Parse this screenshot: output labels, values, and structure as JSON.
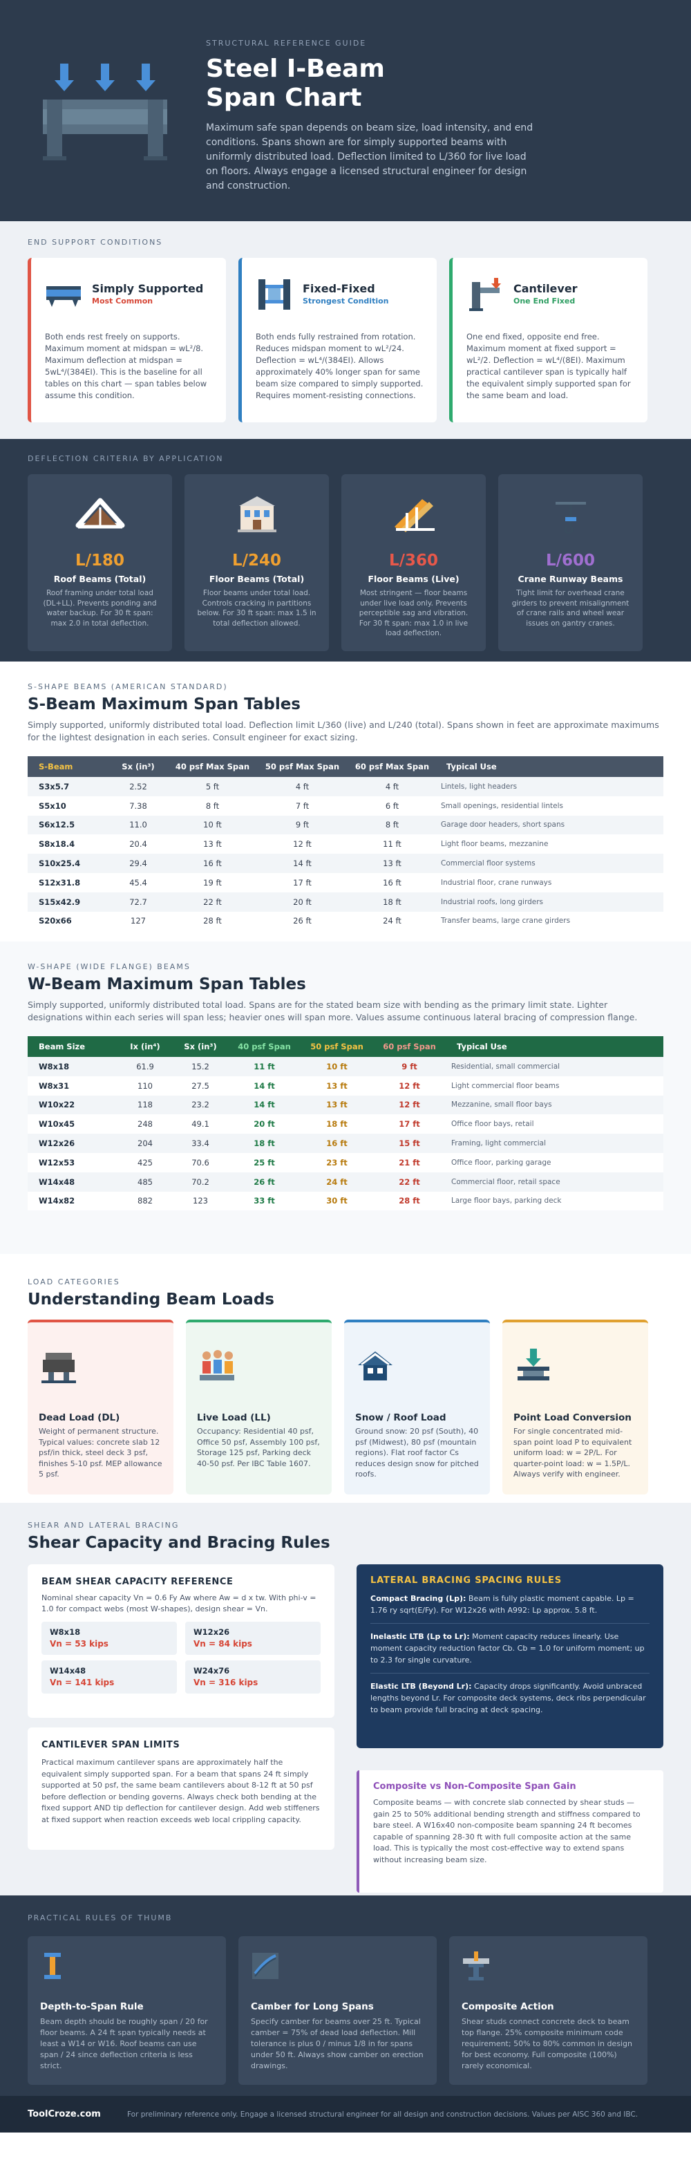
{
  "hero": {
    "eyebrow": "Structural Reference Guide",
    "title_line1": "Steel I-Beam",
    "title_line2": "Span Chart",
    "intro": "Maximum safe span depends on beam size, load intensity, and end conditions. Spans shown are for simply supported beams with uniformly distributed load. Deflection limited to L/360 for live load on floors. Always engage a licensed structural engineer for design and construction."
  },
  "supports": {
    "label": "End Support Conditions",
    "cards": [
      {
        "title": "Simply Supported",
        "subtitle": "Most Common",
        "body": "Both ends rest freely on supports. Maximum moment at midspan = wL²/8. Maximum deflection at midspan = 5wL⁴/(384EI). This is the baseline for all tables on this chart — span tables below assume this condition."
      },
      {
        "title": "Fixed-Fixed",
        "subtitle": "Strongest Condition",
        "body": "Both ends fully restrained from rotation. Reduces midspan moment to wL²/24. Deflection = wL⁴/(384EI). Allows approximately 40% longer span for same beam size compared to simply supported. Requires moment-resisting connections."
      },
      {
        "title": "Cantilever",
        "subtitle": "One End Fixed",
        "body": "One end fixed, opposite end free. Maximum moment at fixed support = wL²/2. Deflection = wL⁴/(8EI). Maximum practical cantilever span is typically half the equivalent simply supported span for the same beam and load."
      }
    ]
  },
  "deflection": {
    "label": "Deflection Criteria by Application",
    "cards": [
      {
        "ratio": "L/180",
        "title": "Roof Beams (Total)",
        "body": "Roof framing under total load (DL+LL). Prevents ponding and water backup. For 30 ft span: max 2.0 in total deflection.",
        "color": "#f0a030"
      },
      {
        "ratio": "L/240",
        "title": "Floor Beams (Total)",
        "body": "Floor beams under total load. Controls cracking in partitions below. For 30 ft span: max 1.5 in total deflection allowed.",
        "color": "#f0a030"
      },
      {
        "ratio": "L/360",
        "title": "Floor Beams (Live)",
        "body": "Most stringent — floor beams under live load only. Prevents perceptible sag and vibration. For 30 ft span: max 1.0 in live load deflection.",
        "color": "#e8584a"
      },
      {
        "ratio": "L/600",
        "title": "Crane Runway Beams",
        "body": "Tight limit for overhead crane girders to prevent misalignment of crane rails and wheel wear issues on gantry cranes.",
        "color": "#a06fd0"
      }
    ]
  },
  "s_beams": {
    "label": "S-Shape Beams (American Standard)",
    "title": "S-Beam Maximum Span Tables",
    "lead": "Simply supported, uniformly distributed total load. Deflection limit L/360 (live) and L/240 (total). Spans shown in feet are approximate maximums for the lightest designation in each series. Consult engineer for exact sizing.",
    "headers": [
      "S-Beam",
      "Sx (in³)",
      "40 psf Max Span",
      "50 psf Max Span",
      "60 psf Max Span",
      "Typical Use"
    ],
    "rows": [
      [
        "S3x5.7",
        "2.52",
        "5 ft",
        "4 ft",
        "4 ft",
        "Lintels, light headers"
      ],
      [
        "S5x10",
        "7.38",
        "8 ft",
        "7 ft",
        "6 ft",
        "Small openings, residential lintels"
      ],
      [
        "S6x12.5",
        "11.0",
        "10 ft",
        "9 ft",
        "8 ft",
        "Garage door headers, short spans"
      ],
      [
        "S8x18.4",
        "20.4",
        "13 ft",
        "12 ft",
        "11 ft",
        "Light floor beams, mezzanine"
      ],
      [
        "S10x25.4",
        "29.4",
        "16 ft",
        "14 ft",
        "13 ft",
        "Commercial floor systems"
      ],
      [
        "S12x31.8",
        "45.4",
        "19 ft",
        "17 ft",
        "16 ft",
        "Industrial floor, crane runways"
      ],
      [
        "S15x42.9",
        "72.7",
        "22 ft",
        "20 ft",
        "18 ft",
        "Industrial roofs, long girders"
      ],
      [
        "S20x66",
        "127",
        "28 ft",
        "26 ft",
        "24 ft",
        "Transfer beams, large crane girders"
      ]
    ]
  },
  "w_beams": {
    "label": "W-Shape (Wide Flange) Beams",
    "title": "W-Beam Maximum Span Tables",
    "lead": "Simply supported, uniformly distributed total load. Spans are for the stated beam size with bending as the primary limit state. Lighter designations within each series will span less; heavier ones will span more. Values assume continuous lateral bracing of compression flange.",
    "headers": [
      "Beam Size",
      "Ix (in⁴)",
      "Sx (in³)",
      "40 psf Span",
      "50 psf Span",
      "60 psf Span",
      "Typical Use"
    ],
    "rows": [
      [
        "W8x18",
        "61.9",
        "15.2",
        "11 ft",
        "10 ft",
        "9 ft",
        "Residential, small commercial"
      ],
      [
        "W8x31",
        "110",
        "27.5",
        "14 ft",
        "13 ft",
        "12 ft",
        "Light commercial floor beams"
      ],
      [
        "W10x22",
        "118",
        "23.2",
        "14 ft",
        "13 ft",
        "12 ft",
        "Mezzanine, small floor bays"
      ],
      [
        "W10x45",
        "248",
        "49.1",
        "20 ft",
        "18 ft",
        "17 ft",
        "Office floor bays, retail"
      ],
      [
        "W12x26",
        "204",
        "33.4",
        "18 ft",
        "16 ft",
        "15 ft",
        "Framing, light commercial"
      ],
      [
        "W12x53",
        "425",
        "70.6",
        "25 ft",
        "23 ft",
        "21 ft",
        "Office floor, parking garage"
      ],
      [
        "W14x48",
        "485",
        "70.2",
        "26 ft",
        "24 ft",
        "22 ft",
        "Commercial floor, retail space"
      ],
      [
        "W14x82",
        "882",
        "123",
        "33 ft",
        "30 ft",
        "28 ft",
        "Large floor bays, parking deck"
      ]
    ]
  },
  "loads": {
    "label": "Load Categories",
    "title": "Understanding Beam Loads",
    "cards": [
      {
        "title": "Dead Load (DL)",
        "body": "Weight of permanent structure. Typical values: concrete slab 12 psf/in thick, steel deck 3 psf, finishes 5-10 psf. MEP allowance 5 psf."
      },
      {
        "title": "Live Load (LL)",
        "body": "Occupancy: Residential 40 psf, Office 50 psf, Assembly 100 psf, Storage 125 psf, Parking deck 40-50 psf. Per IBC Table 1607."
      },
      {
        "title": "Snow / Roof Load",
        "body": "Ground snow: 20 psf (South), 40 psf (Midwest), 80 psf (mountain regions). Flat roof factor Cs reduces design snow for pitched roofs."
      },
      {
        "title": "Point Load Conversion",
        "body": "For single concentrated mid-span point load P to equivalent uniform load: w = 2P/L. For quarter-point load: w = 1.5P/L. Always verify with engineer."
      }
    ]
  },
  "shear": {
    "label": "Shear and Lateral Bracing",
    "title": "Shear Capacity and Bracing Rules",
    "ref_title": "Beam Shear Capacity Reference",
    "ref_lead": "Nominal shear capacity Vn = 0.6 Fy Aw where Aw = d x tw. With phi-v = 1.0 for compact webs (most W-shapes), design shear = Vn.",
    "capacities": [
      {
        "name": "W8x18",
        "value": "Vn = 53 kips"
      },
      {
        "name": "W12x26",
        "value": "Vn = 84 kips"
      },
      {
        "name": "W14x48",
        "value": "Vn = 141 kips"
      },
      {
        "name": "W24x76",
        "value": "Vn = 316 kips"
      }
    ],
    "cantilever_title": "Cantilever Span Limits",
    "cantilever_body": "Practical maximum cantilever spans are approximately half the equivalent simply supported span. For a beam that spans 24 ft simply supported at 50 psf, the same beam cantilevers about 8-12 ft at 50 psf before deflection or bending governs. Always check both bending at the fixed support AND tip deflection for cantilever design. Add web stiffeners at fixed support when reaction exceeds web local crippling capacity.",
    "lateral_title": "Lateral Bracing Spacing Rules",
    "lateral_items": [
      {
        "head": "Compact Bracing (Lp):",
        "text": " Beam is fully plastic moment capable. Lp = 1.76 ry sqrt(E/Fy). For W12x26 with A992: Lp approx. 5.8 ft."
      },
      {
        "head": "Inelastic LTB (Lp to Lr):",
        "text": " Moment capacity reduces linearly. Use moment capacity reduction factor Cb. Cb = 1.0 for uniform moment; up to 2.3 for single curvature."
      },
      {
        "head": "Elastic LTB (Beyond Lr):",
        "text": " Capacity drops significantly. Avoid unbraced lengths beyond Lr. For composite deck systems, deck ribs perpendicular to beam provide full bracing at deck spacing."
      }
    ],
    "composite_title": "Composite vs Non-Composite Span Gain",
    "composite_body": "Composite beams — with concrete slab connected by shear studs — gain 25 to 50% additional bending strength and stiffness compared to bare steel. A W16x40 non-composite beam spanning 24 ft becomes capable of spanning 28-30 ft with full composite action at the same load. This is typically the most cost-effective way to extend spans without increasing beam size."
  },
  "rules": {
    "label": "Practical Rules of Thumb",
    "cards": [
      {
        "title": "Depth-to-Span Rule",
        "body": "Beam depth should be roughly span / 20 for floor beams. A 24 ft span typically needs at least a W14 or W16. Roof beams can use span / 24 since deflection criteria is less strict."
      },
      {
        "title": "Camber for Long Spans",
        "body": "Specify camber for beams over 25 ft. Typical camber = 75% of dead load deflection. Mill tolerance is plus 0 / minus 1/8 in for spans under 50 ft. Always show camber on erection drawings."
      },
      {
        "title": "Composite Action",
        "body": "Shear studs connect concrete deck to beam top flange. 25% composite minimum code requirement; 50% to 80% common in design for best economy. Full composite (100%) rarely economical."
      }
    ]
  },
  "footer": {
    "brand": "ToolCroze.com",
    "note": "For preliminary reference only. Engage a licensed structural engineer for all design and construction decisions. Values per AISC 360 and IBC."
  }
}
